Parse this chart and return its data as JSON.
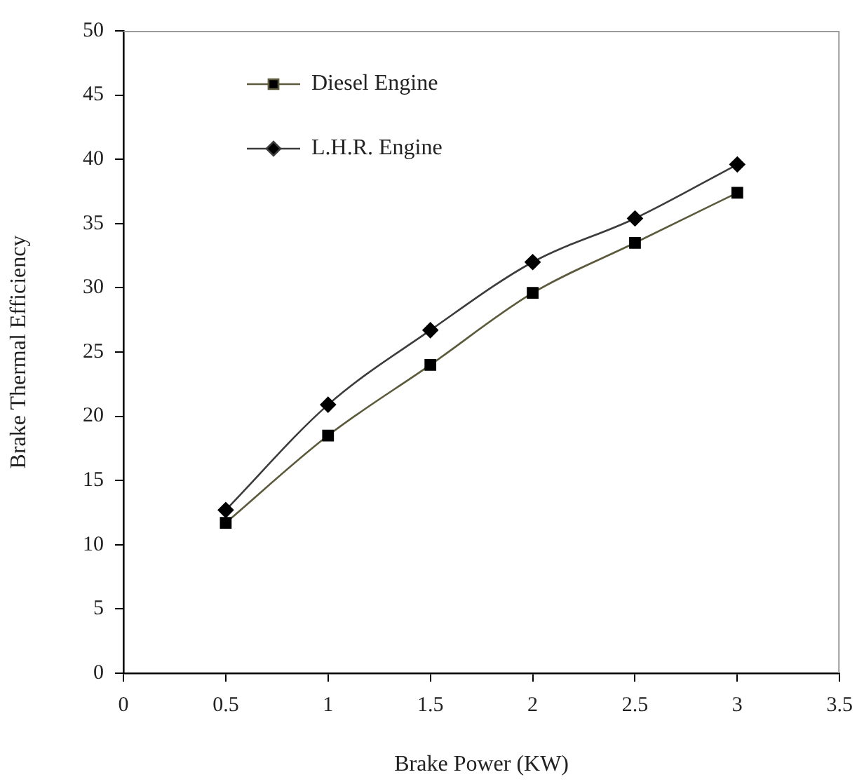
{
  "chart_data": {
    "type": "line",
    "xlabel": "Brake Power (KW)",
    "ylabel": "Brake Thermal Efficiency",
    "x": [
      0.5,
      1,
      1.5,
      2,
      2.5,
      3
    ],
    "series": [
      {
        "name": "Diesel Engine",
        "color": "#5c5a3c",
        "marker": "square",
        "values": [
          11.7,
          18.5,
          24,
          29.6,
          33.5,
          37.4
        ]
      },
      {
        "name": "L.H.R. Engine",
        "color": "#3c3c3c",
        "marker": "diamond",
        "values": [
          12.7,
          20.9,
          26.7,
          32,
          35.4,
          39.6
        ]
      }
    ],
    "xlim": [
      0,
      3.5
    ],
    "xticks": [
      0,
      0.5,
      1,
      1.5,
      2,
      2.5,
      3,
      3.5
    ],
    "ylim": [
      0,
      50
    ],
    "yticks": [
      0,
      5,
      10,
      15,
      20,
      25,
      30,
      35,
      40,
      45,
      50
    ],
    "grid": false,
    "legend": "top left",
    "line_style": "solid"
  }
}
